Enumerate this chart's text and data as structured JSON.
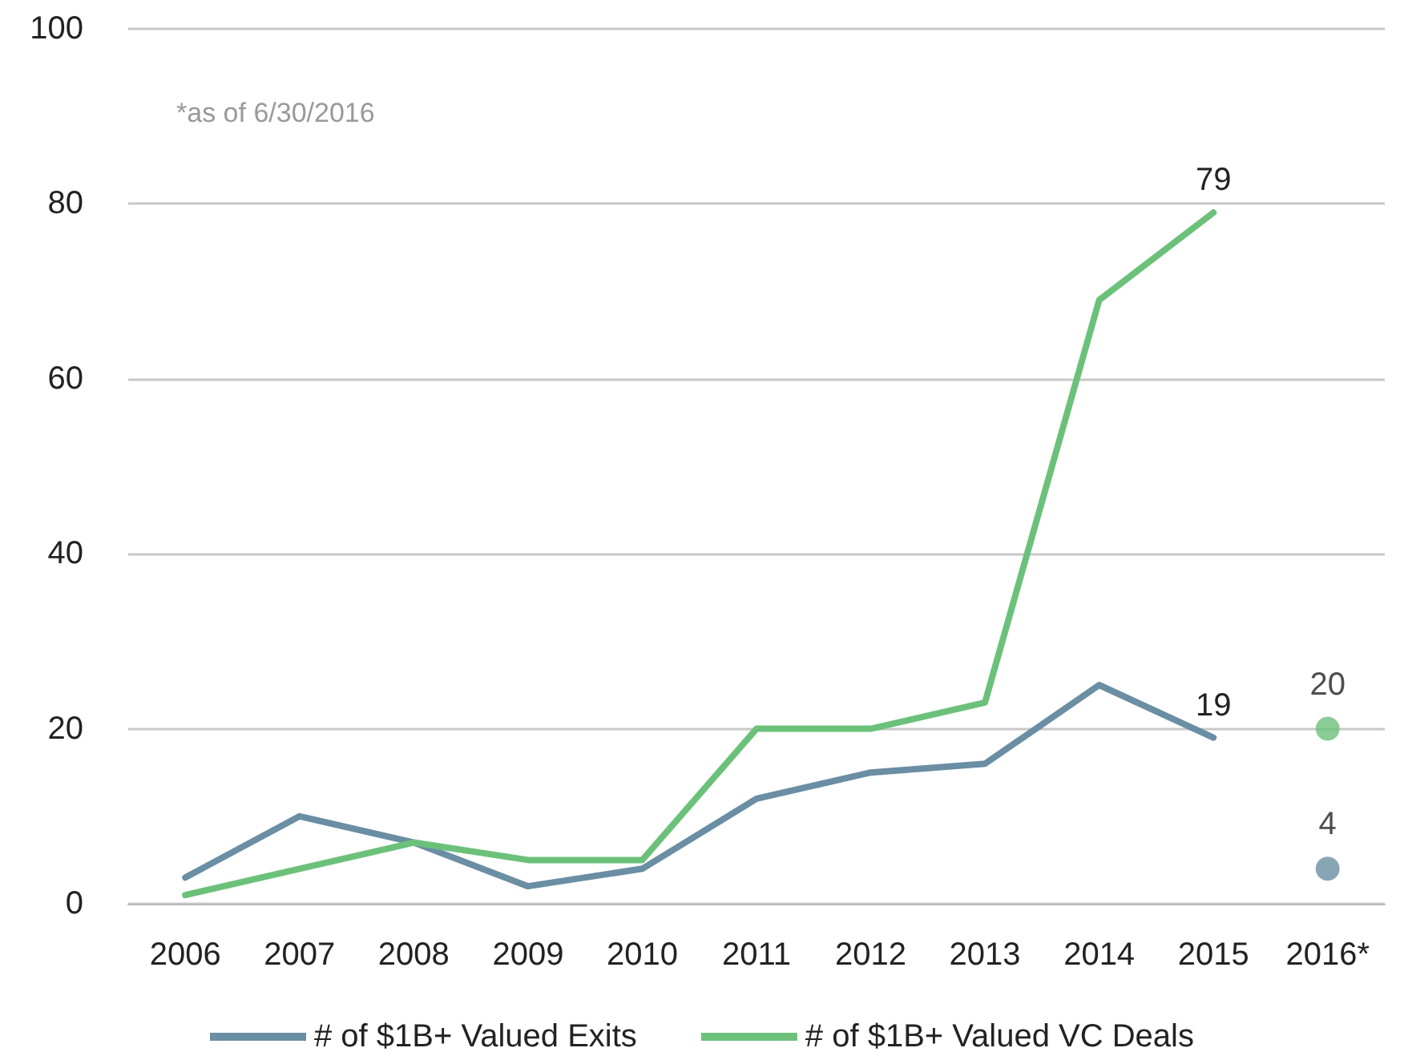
{
  "chart_data": {
    "type": "line",
    "categories": [
      "2006",
      "2007",
      "2008",
      "2009",
      "2010",
      "2011",
      "2012",
      "2013",
      "2014",
      "2015",
      "2016*"
    ],
    "series": [
      {
        "name": "# of $1B+ Valued Exits",
        "color": "#6a8ea3",
        "values": [
          3,
          10,
          7,
          2,
          4,
          12,
          15,
          16,
          25,
          19,
          null
        ],
        "value_labels": [
          null,
          null,
          null,
          null,
          null,
          null,
          null,
          null,
          null,
          "19",
          null
        ]
      },
      {
        "name": "# of $1B+ Valued VC Deals",
        "color": "#6cc17a",
        "values": [
          1,
          4,
          7,
          5,
          5,
          20,
          20,
          23,
          69,
          79,
          null
        ],
        "value_labels": [
          null,
          null,
          null,
          null,
          null,
          null,
          null,
          null,
          null,
          "79",
          null
        ]
      },
      {
        "type": "scatter",
        "marker": "circle",
        "color": "#6cc17a",
        "x": [
          "2016*"
        ],
        "values": [
          20
        ],
        "value_labels": [
          "20"
        ]
      },
      {
        "type": "scatter",
        "marker": "circle",
        "color": "#6a8ea3",
        "x": [
          "2016*"
        ],
        "values": [
          4
        ],
        "value_labels": [
          "4"
        ]
      }
    ],
    "ylim": [
      0,
      100
    ],
    "yticks": [
      0,
      20,
      40,
      60,
      80,
      100
    ],
    "grid": "y",
    "legend": "bottom",
    "marker": "none",
    "line_style": "solid",
    "annotations": [
      "*as of 6/30/2016"
    ]
  }
}
